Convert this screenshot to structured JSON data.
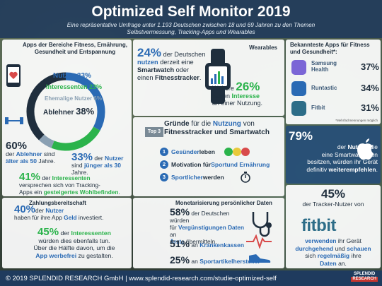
{
  "header": {
    "title": "Optimized Self Monitor 2019",
    "subtitle_line1": "Eine repräsentative Umfrage unter 1.193 Deutschen zwischen 18 und 69 Jahren zu den Themen",
    "subtitle_line2": "Selbstvermessung, Tracking-Apps und Wearables"
  },
  "apps_section": {
    "title": "Apps der Bereiche Fitness, Ernährung, Gesundheit und Entspannung",
    "donut": [
      {
        "label": "Nutzer",
        "value": 33,
        "display": "33%",
        "color": "#2a6ab4"
      },
      {
        "label": "Interessenten",
        "value": 23,
        "display": "23%",
        "color": "#2bb34b"
      },
      {
        "label": "Ehemalige Nutzer",
        "value": 6,
        "display": "6%",
        "color": "#8aa0b3"
      },
      {
        "label": "Ablehner",
        "value": 38,
        "display": "38%",
        "color": "#1f2e3d"
      }
    ],
    "stat_60_value": "60%",
    "stat_60_pre": "der ",
    "stat_60_hl": "Ablehner",
    "stat_60_mid": " sind ",
    "stat_60_end": "älter als 50",
    "stat_60_tail": " Jahre.",
    "stat_33_value": "33%",
    "stat_33_pre": " der ",
    "stat_33_hl": "Nutzer",
    "stat_33_mid": " sind ",
    "stat_33_end": "jünger als 30",
    "stat_33_tail": " Jahre.",
    "stat_41_value": "41%",
    "stat_41_pre": " der ",
    "stat_41_hl": "Interessenten",
    "stat_41_line2": "versprechen sich von Tracking-",
    "stat_41_line3a": "Apps ein ",
    "stat_41_line3b": "gesteigertes Wohlbefinden",
    "stat_41_line3c": "."
  },
  "wearables": {
    "title": "Wearables",
    "stat_24_value": "24%",
    "stat_24_a": " der Deutschen",
    "stat_24_b": "nutzen",
    "stat_24_c": " derzeit eine",
    "stat_24_d": "Smartwatch",
    "stat_24_e": " oder",
    "stat_24_f": "einen ",
    "stat_24_g": "Fitnesstracker",
    "stat_24_h": ".",
    "stat_26_pre": "Weitere ",
    "stat_26_value": "26%",
    "stat_26_b": "haben ",
    "stat_26_c": "Interesse",
    "stat_26_d": "an einer Nutzung."
  },
  "reasons": {
    "badge": "Top 3",
    "title_a": "Gründe",
    "title_b": " für die ",
    "title_c": "Nutzung",
    "title_d": " von",
    "title_line2": "Fitnesstracker und Smartwatch",
    "items": [
      {
        "num": "1",
        "a": "Gesünder",
        "b": " leben",
        "c": ""
      },
      {
        "num": "2",
        "a": "Motivation für ",
        "b": "Sport",
        "c": " und Ernährung"
      },
      {
        "num": "3",
        "a": "Sportlicher",
        "b": " werden",
        "c": ""
      }
    ]
  },
  "top_apps": {
    "title": "Bekannteste Apps für Fitness und Gesundheit*:",
    "apps": [
      {
        "name_line1": "Samsung",
        "name_line2": "Health",
        "pct": "37%",
        "color": "#7b66d6",
        "icon": "samsung-health-icon"
      },
      {
        "name_line1": "Runtastic",
        "name_line2": "",
        "pct": "34%",
        "color": "#2a6ab4",
        "icon": "runtastic-icon"
      },
      {
        "name_line1": "Fitbit",
        "name_line2": "",
        "pct": "31%",
        "color": "#2d6d88",
        "icon": "fitbit-icon"
      }
    ],
    "note": "*Mehrfachnennungen möglich"
  },
  "smartwatch": {
    "value": "79%",
    "a": "der ",
    "b": "Nutzer",
    "c": ", die",
    "d": "eine Smartwatch von",
    "e": "besitzen, würden ihr Gerät",
    "f": "definitiv ",
    "g": "weiterempfehlen",
    "h": "."
  },
  "fitbit": {
    "value": "45%",
    "a": "der Tracker-Nutzer von",
    "logo": "fitbit",
    "b": "verwenden",
    "c": " ihr Gerät",
    "d": "durchgehend",
    "e": " und ",
    "f": "schauen",
    "g": "sich ",
    "h": "regelmäßig",
    "i": " ihre",
    "j": "Daten",
    "k": " an."
  },
  "payment": {
    "title": "Zahlungsbereitschaft",
    "stat_40_value": "40%",
    "stat_40_a": "der ",
    "stat_40_b": "Nutzer",
    "stat_40_c": "haben für ihre App ",
    "stat_40_d": "Geld",
    "stat_40_e": " investiert.",
    "stat_45_value": "45%",
    "stat_45_a": " der ",
    "stat_45_b": "Interessenten",
    "stat_45_c": "würden dies ebenfalls tun.",
    "stat_45_d": "Über die Hälfte davon, um die",
    "stat_45_e": "App werbefrei",
    "stat_45_f": " zu gestalten."
  },
  "monetization": {
    "title": "Monetarisierung persönlicher Daten",
    "stat_58_value": "58%",
    "stat_58_a": " der Deutschen würden",
    "stat_58_b": "für ",
    "stat_58_c": "Vergünstigungen Daten",
    "stat_58_d": " an",
    "stat_58_e": "Ärzte",
    "stat_58_f": " übermitteln.",
    "stat_51_value": "51%",
    "stat_51_a": " an ",
    "stat_51_b": "Krankenkassen",
    "stat_25_value": "25%",
    "stat_25_a": " an ",
    "stat_25_b": "Sportartikelhersteller"
  },
  "footer": {
    "copyright": "© 2019 SPLENDID RESEARCH GmbH",
    "sep": " | ",
    "url": "www.splendid-research.com/studie-optimized-self",
    "logo_line1": "SPLENDID",
    "logo_line2": "RESEARCH"
  }
}
